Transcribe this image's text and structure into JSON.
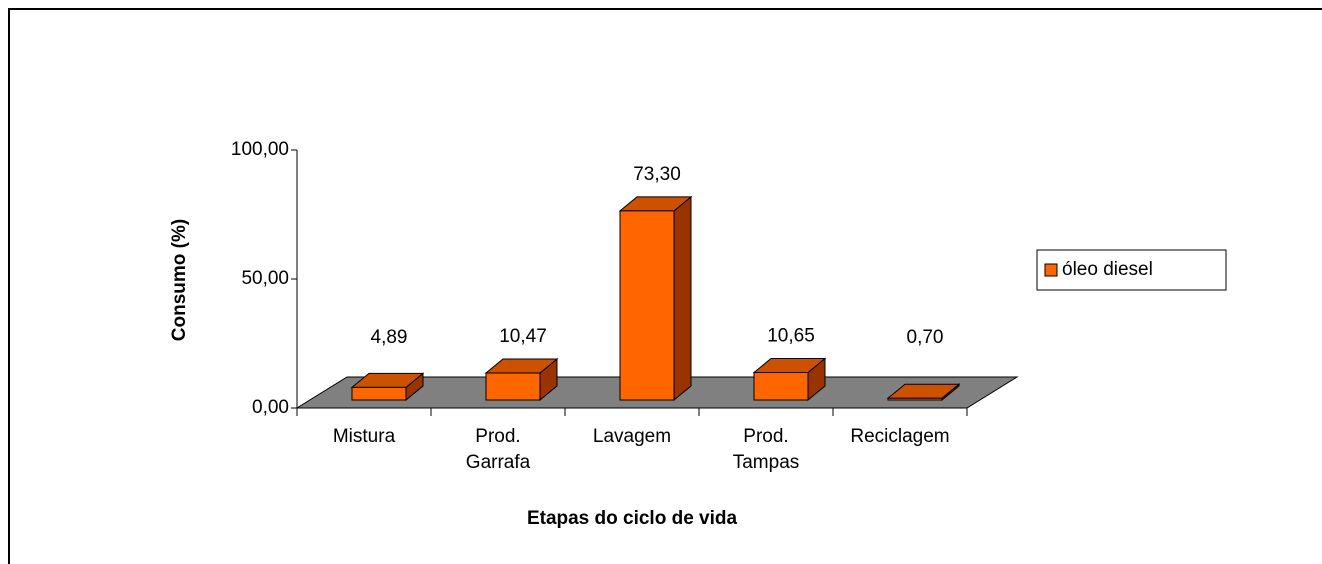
{
  "chart_data": {
    "type": "bar3d",
    "y_axis_label": "Consumo (%)",
    "x_axis_label": "Etapas do ciclo de vida",
    "categories": [
      "Mistura",
      "Prod. Garrafa",
      "Lavagem",
      "Prod. Tampas",
      "Reciclagem"
    ],
    "series": [
      {
        "name": "óleo diesel",
        "color": "#ff6600",
        "values": [
          4.89,
          10.47,
          73.3,
          10.65,
          0.7
        ],
        "value_labels": [
          "4,89",
          "10,47",
          "73,30",
          "10,65",
          "0,70"
        ]
      }
    ],
    "ylim": [
      0,
      100
    ],
    "yticks": [
      {
        "value": 0,
        "label": "0,00"
      },
      {
        "value": 50,
        "label": "50,00"
      },
      {
        "value": 100,
        "label": "100,00"
      }
    ],
    "legend": "right",
    "grid": false
  }
}
